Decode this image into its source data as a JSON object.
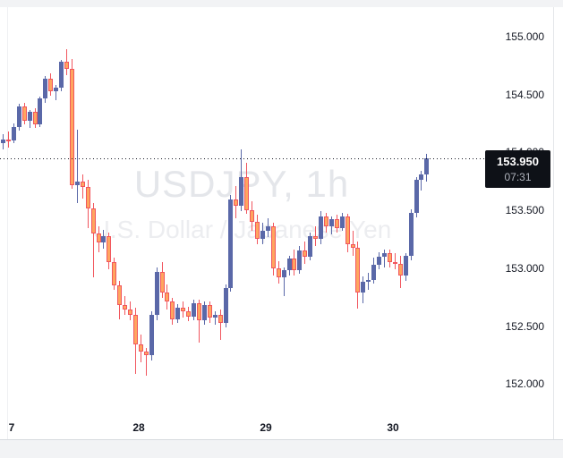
{
  "chart": {
    "watermark": {
      "line1": "USDJPY, 1h",
      "line2": "U.S. Dollar / Japanese Yen"
    },
    "price_label": {
      "price": "153.950",
      "countdown": "07:31"
    },
    "colors": {
      "up": "#5A68A8",
      "down_fill": "#FFA55F",
      "down_border": "#F1565E",
      "label_bg": "#0E1117",
      "axis_text": "#131722",
      "watermark_primary": "#E4E6EA",
      "watermark_secondary": "#ECEDF0"
    }
  },
  "chart_data": {
    "type": "candlestick",
    "symbol": "USDJPY",
    "interval": "1h",
    "title": "USDJPY, 1h",
    "description": "U.S. Dollar / Japanese Yen",
    "current_price": 153.95,
    "countdown": "07:31",
    "grid": false,
    "legend_position": "none",
    "ylim": [
      151.52,
      155.26
    ],
    "y_axis_ticks": [
      {
        "label": "155.000",
        "price": 155.0
      },
      {
        "label": "154.500",
        "price": 154.5
      },
      {
        "label": "154.000",
        "price": 154.0
      },
      {
        "label": "153.500",
        "price": 153.5
      },
      {
        "label": "153.000",
        "price": 153.0
      },
      {
        "label": "152.500",
        "price": 152.5
      },
      {
        "label": "152.000",
        "price": 152.0
      }
    ],
    "x_axis_ticks": [
      {
        "label": "7",
        "candle_index": 1
      },
      {
        "label": "28",
        "candle_index": 25
      },
      {
        "label": "29",
        "candle_index": 49
      },
      {
        "label": "30",
        "candle_index": 73
      }
    ],
    "ohlc_format": [
      "open",
      "high",
      "low",
      "close"
    ],
    "candles": [
      [
        154.08,
        154.16,
        154.03,
        154.11
      ],
      [
        154.11,
        154.18,
        154.04,
        154.1
      ],
      [
        154.1,
        154.25,
        154.08,
        154.22
      ],
      [
        154.22,
        154.42,
        154.19,
        154.4
      ],
      [
        154.4,
        154.43,
        154.24,
        154.27
      ],
      [
        154.27,
        154.37,
        154.21,
        154.35
      ],
      [
        154.35,
        154.38,
        154.21,
        154.24
      ],
      [
        154.24,
        154.48,
        154.22,
        154.47
      ],
      [
        154.47,
        154.66,
        154.43,
        154.64
      ],
      [
        154.64,
        154.68,
        154.49,
        154.53
      ],
      [
        154.53,
        154.58,
        154.45,
        154.56
      ],
      [
        154.56,
        154.8,
        154.53,
        154.78
      ],
      [
        154.78,
        154.89,
        154.67,
        154.72
      ],
      [
        154.72,
        154.81,
        153.69,
        153.72
      ],
      [
        153.72,
        154.2,
        153.56,
        153.75
      ],
      [
        153.75,
        153.81,
        153.6,
        153.7
      ],
      [
        153.7,
        153.76,
        153.35,
        153.52
      ],
      [
        153.52,
        153.56,
        152.92,
        153.3
      ],
      [
        153.3,
        153.36,
        153.14,
        153.22
      ],
      [
        153.22,
        153.33,
        153.17,
        153.28
      ],
      [
        153.28,
        153.31,
        152.99,
        153.05
      ],
      [
        153.05,
        153.09,
        152.81,
        152.85
      ],
      [
        152.85,
        152.89,
        152.56,
        152.68
      ],
      [
        152.68,
        152.76,
        152.6,
        152.64
      ],
      [
        152.64,
        152.71,
        152.55,
        152.6
      ],
      [
        152.6,
        152.66,
        152.09,
        152.34
      ],
      [
        152.34,
        152.43,
        152.19,
        152.28
      ],
      [
        152.28,
        152.31,
        152.07,
        152.25
      ],
      [
        152.25,
        152.63,
        152.2,
        152.6
      ],
      [
        152.6,
        153.01,
        152.55,
        152.97
      ],
      [
        152.97,
        153.05,
        152.74,
        152.79
      ],
      [
        152.79,
        152.86,
        152.64,
        152.71
      ],
      [
        152.71,
        152.74,
        152.51,
        152.56
      ],
      [
        152.56,
        152.69,
        152.53,
        152.66
      ],
      [
        152.66,
        152.71,
        152.57,
        152.63
      ],
      [
        152.63,
        152.67,
        152.54,
        152.58
      ],
      [
        152.58,
        152.73,
        152.55,
        152.7
      ],
      [
        152.7,
        152.73,
        152.36,
        152.55
      ],
      [
        152.55,
        152.71,
        152.51,
        152.68
      ],
      [
        152.68,
        152.71,
        152.53,
        152.57
      ],
      [
        152.57,
        152.63,
        152.51,
        152.6
      ],
      [
        152.6,
        152.64,
        152.38,
        152.53
      ],
      [
        152.53,
        152.86,
        152.49,
        152.83
      ],
      [
        152.83,
        153.63,
        152.8,
        153.59
      ],
      [
        153.59,
        153.71,
        153.43,
        153.54
      ],
      [
        153.54,
        154.03,
        153.49,
        153.79
      ],
      [
        153.79,
        153.91,
        153.47,
        153.5
      ],
      [
        153.5,
        153.58,
        153.32,
        153.4
      ],
      [
        153.4,
        153.46,
        153.21,
        153.25
      ],
      [
        153.25,
        153.39,
        153.21,
        153.32
      ],
      [
        153.32,
        153.43,
        153.27,
        153.36
      ],
      [
        153.36,
        153.39,
        152.94,
        153.0
      ],
      [
        153.0,
        153.06,
        152.87,
        152.92
      ],
      [
        152.92,
        153.01,
        152.76,
        152.98
      ],
      [
        152.98,
        153.11,
        152.94,
        153.08
      ],
      [
        153.08,
        153.16,
        152.94,
        152.98
      ],
      [
        152.98,
        153.19,
        152.95,
        153.15
      ],
      [
        153.15,
        153.23,
        153.04,
        153.1
      ],
      [
        153.1,
        153.31,
        153.07,
        153.28
      ],
      [
        153.28,
        153.36,
        153.19,
        153.25
      ],
      [
        153.25,
        153.49,
        153.21,
        153.45
      ],
      [
        153.45,
        153.48,
        153.31,
        153.36
      ],
      [
        153.36,
        153.45,
        153.29,
        153.42
      ],
      [
        153.42,
        153.46,
        153.31,
        153.35
      ],
      [
        153.35,
        153.48,
        153.32,
        153.45
      ],
      [
        153.45,
        153.47,
        153.14,
        153.21
      ],
      [
        153.21,
        153.32,
        153.11,
        153.18
      ],
      [
        153.18,
        153.23,
        152.65,
        152.79
      ],
      [
        152.79,
        152.93,
        152.7,
        152.88
      ],
      [
        152.88,
        152.96,
        152.81,
        152.9
      ],
      [
        152.9,
        153.09,
        152.87,
        153.03
      ],
      [
        153.03,
        153.14,
        152.99,
        153.1
      ],
      [
        153.1,
        153.16,
        153.01,
        153.13
      ],
      [
        153.13,
        153.16,
        153.01,
        153.05
      ],
      [
        153.05,
        153.13,
        152.99,
        153.04
      ],
      [
        153.04,
        153.11,
        152.83,
        152.94
      ],
      [
        152.94,
        153.13,
        152.89,
        153.11
      ],
      [
        153.11,
        153.51,
        153.07,
        153.48
      ],
      [
        153.48,
        153.79,
        153.44,
        153.76
      ],
      [
        153.76,
        153.84,
        153.67,
        153.81
      ],
      [
        153.81,
        153.99,
        153.75,
        153.95
      ]
    ]
  }
}
